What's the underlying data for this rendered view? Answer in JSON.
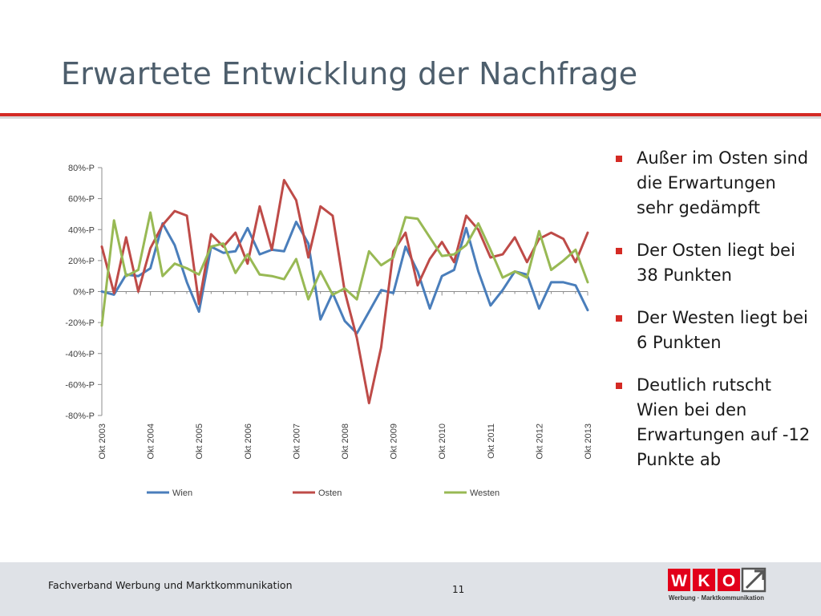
{
  "slide": {
    "title": "Erwartete Entwicklung der Nachfrage",
    "bullets": [
      "Außer im Osten sind die Erwartungen sehr gedämpft",
      "Der Osten liegt bei 38 Punkten",
      "Der Westen liegt bei 6 Punkten",
      "Deutlich rutscht Wien bei den Erwartungen auf -12 Punkte ab"
    ],
    "footer_text": "Fachverband Werbung und Marktkommunikation",
    "page_number": "11",
    "logo": {
      "letters": [
        "W",
        "K",
        "O"
      ],
      "subtitle": "Werbung · Marktkommunikation",
      "brand_color": "#e2001a"
    }
  },
  "chart_data": {
    "type": "line",
    "ylim": [
      -80,
      80
    ],
    "yticks": [
      "80%-P",
      "60%-P",
      "40%-P",
      "20%-P",
      "0%-P",
      "-20%-P",
      "-40%-P",
      "-60%-P",
      "-80%-P"
    ],
    "ytick_values": [
      80,
      60,
      40,
      20,
      0,
      -20,
      -40,
      -60,
      -80
    ],
    "xtick_labels": [
      "Okt 2003",
      "Okt 2004",
      "Okt 2005",
      "Okt 2006",
      "Okt 2007",
      "Okt 2008",
      "Okt 2009",
      "Okt 2010",
      "Okt 2011",
      "Okt 2012",
      "Okt 2013"
    ],
    "xtick_positions": [
      0,
      4,
      8,
      12,
      16,
      20,
      24,
      28,
      32,
      36,
      40
    ],
    "grid": false,
    "legend_position": "bottom",
    "series": [
      {
        "name": "Wien",
        "color": "#4a7ebb",
        "values": [
          0,
          -2,
          11,
          10,
          15,
          44,
          30,
          6,
          -13,
          29,
          25,
          26,
          41,
          24,
          27,
          26,
          45,
          31,
          -18,
          -1,
          -19,
          -27,
          -13,
          1,
          -1,
          29,
          13,
          -11,
          10,
          14,
          41,
          13,
          -9,
          1,
          13,
          11,
          -11,
          6,
          6,
          4,
          -12
        ]
      },
      {
        "name": "Osten",
        "color": "#be4b48",
        "values": [
          29,
          -1,
          35,
          0,
          28,
          43,
          52,
          49,
          -8,
          37,
          29,
          38,
          18,
          55,
          27,
          72,
          59,
          22,
          55,
          49,
          0,
          -30,
          -72,
          -36,
          26,
          38,
          4,
          21,
          32,
          19,
          49,
          40,
          22,
          24,
          35,
          19,
          34,
          38,
          34,
          19,
          38
        ]
      },
      {
        "name": "Westen",
        "color": "#98b954",
        "values": [
          -22,
          46,
          10,
          14,
          51,
          10,
          18,
          15,
          11,
          29,
          31,
          12,
          24,
          11,
          10,
          8,
          21,
          -5,
          13,
          -2,
          2,
          -5,
          26,
          17,
          22,
          48,
          47,
          35,
          23,
          24,
          30,
          44,
          27,
          9,
          13,
          9,
          39,
          14,
          20,
          27,
          6
        ]
      }
    ]
  }
}
